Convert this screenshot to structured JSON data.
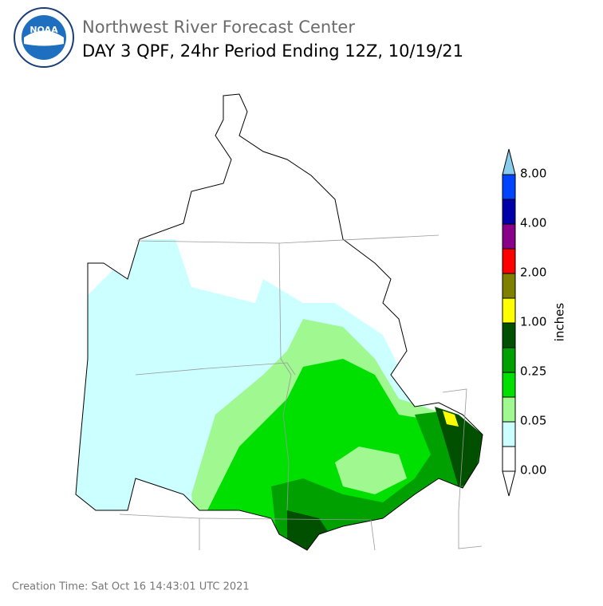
{
  "header": {
    "logo_text": "NOAA",
    "title": "Northwest River Forecast Center",
    "subtitle": "DAY 3 QPF, 24hr Period Ending 12Z, 10/19/21"
  },
  "legend": {
    "unit": "inches",
    "labels": [
      "0.00",
      "0.05",
      "0.25",
      "1.00",
      "2.00",
      "4.00",
      "8.00"
    ]
  },
  "footer": {
    "creation_time": "Creation Time: Sat Oct 16 14:43:01 UTC 2021"
  }
}
